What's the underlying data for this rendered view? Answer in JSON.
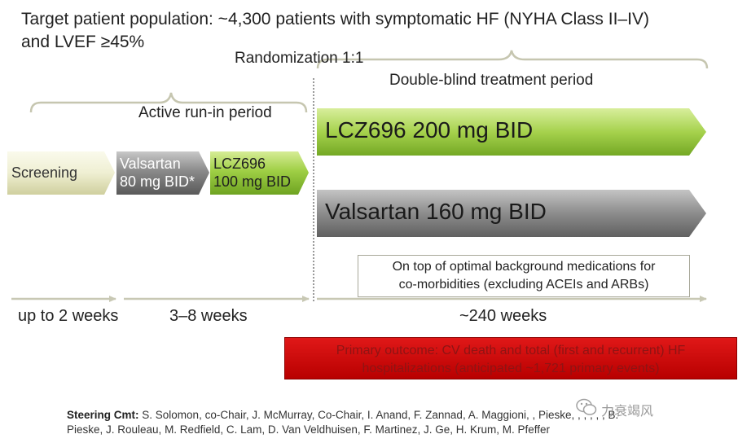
{
  "title": {
    "line1": "Target patient population: ~4,300 patients with symptomatic HF (NYHA Class II–IV)",
    "line2": "and LVEF ≥45%"
  },
  "labels": {
    "randomization": "Randomization 1:1",
    "double_blind": "Double-blind treatment period",
    "active_runin": "Active run-in period"
  },
  "phases": {
    "screening": "Screening",
    "valsartan_runin_line1": "Valsartan",
    "valsartan_runin_line2": "80 mg BID*",
    "lcz_runin_line1": "LCZ696",
    "lcz_runin_line2": "100 mg BID",
    "lcz_arm": "LCZ696 200 mg BID",
    "valsartan_arm": "Valsartan 160 mg BID"
  },
  "note": {
    "line1": "On top of optimal background medications for",
    "line2": "co-morbidities (excluding ACEIs and ARBs)"
  },
  "timeline": {
    "screening_duration": "up to 2 weeks",
    "runin_duration": "3–8 weeks",
    "treatment_duration": "~240 weeks"
  },
  "outcome": {
    "line1": "Primary outcome: CV death and total (first and recurrent) HF",
    "line2": "hospitalizations (anticipated ~1,721 primary events)"
  },
  "footer": {
    "heading": "Steering Cmt:",
    "line1": "S. Solomon, co-Chair, J. McMurray, Co-Chair, I. Anand, F. Zannad, A. Maggioni, , Pieske, , , , , , B.",
    "line2": "Pieske, J. Rouleau, M. Redfield, C. Lam, D. Van Veldhuisen, F. Martinez, J. Ge, H. Krum, M. Pfeffer"
  },
  "watermark": "力衰竭风",
  "colors": {
    "green_dark": "#7fb82a",
    "green_light": "#c4e07a",
    "gray_dark": "#5a5a5a",
    "gray_light": "#b0b0b0",
    "screening_light": "#f2f2d8",
    "screening_dark": "#c9c996",
    "outcome_red": "#d00000"
  }
}
